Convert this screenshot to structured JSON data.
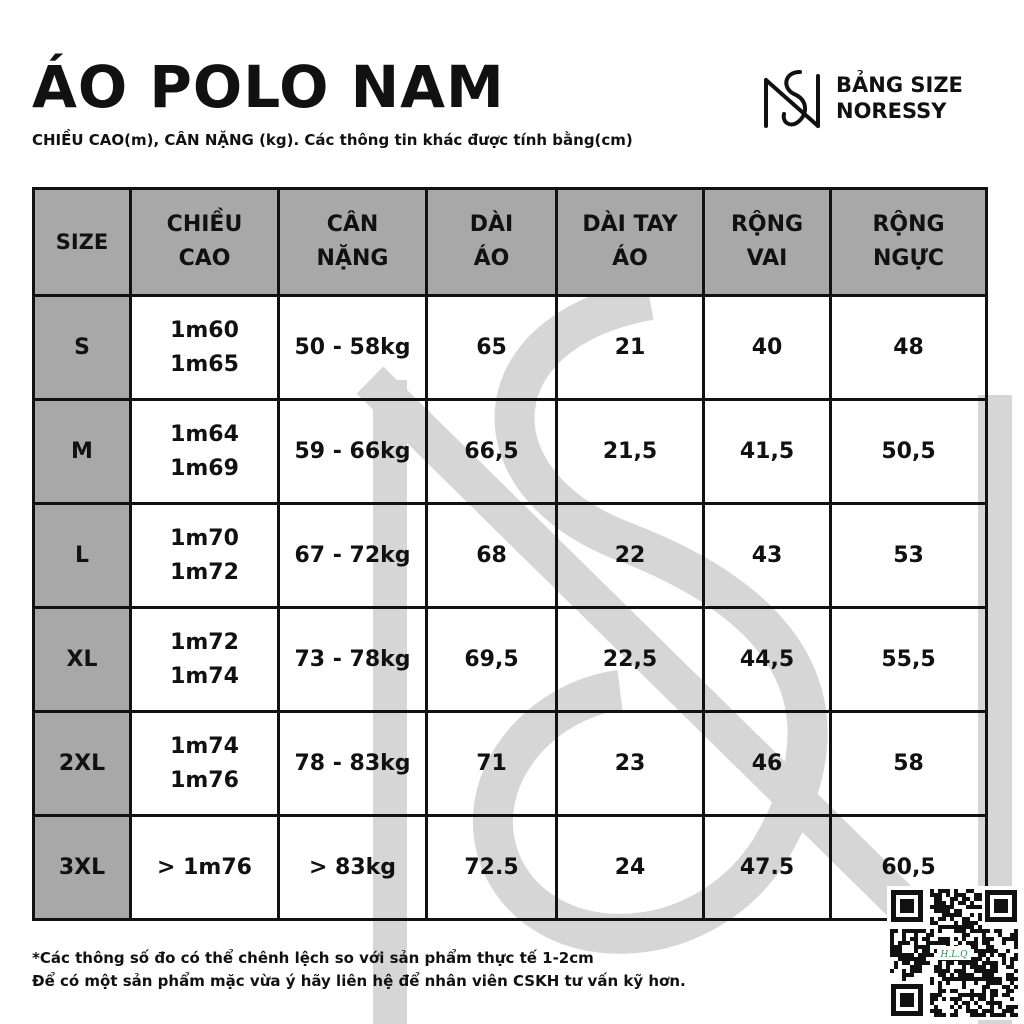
{
  "header": {
    "title": "ÁO POLO NAM",
    "subtitle": "CHIỀU CAO(m), CÂN NẶNG (kg). Các thông tin khác được tính bằng(cm)"
  },
  "brand": {
    "line1": "BẢNG SIZE",
    "line2": "NORESSY",
    "logo_icon": "ns-monogram-logo"
  },
  "table": {
    "headers": [
      [
        "SIZE"
      ],
      [
        "CHIỀU",
        "CAO"
      ],
      [
        "CÂN",
        "NẶNG"
      ],
      [
        "DÀI",
        "ÁO"
      ],
      [
        "DÀI TAY",
        "ÁO"
      ],
      [
        "RỘNG",
        "VAI"
      ],
      [
        "RỘNG",
        "NGỰC"
      ]
    ],
    "rows": [
      {
        "size": "S",
        "height": [
          "1m60",
          "1m65"
        ],
        "weight": "50 - 58kg",
        "length": "65",
        "sleeve": "21",
        "shoulder": "40",
        "chest": "48"
      },
      {
        "size": "M",
        "height": [
          "1m64",
          "1m69"
        ],
        "weight": "59 - 66kg",
        "length": "66,5",
        "sleeve": "21,5",
        "shoulder": "41,5",
        "chest": "50,5"
      },
      {
        "size": "L",
        "height": [
          "1m70",
          "1m72"
        ],
        "weight": "67 - 72kg",
        "length": "68",
        "sleeve": "22",
        "shoulder": "43",
        "chest": "53"
      },
      {
        "size": "XL",
        "height": [
          "1m72",
          "1m74"
        ],
        "weight": "73 - 78kg",
        "length": "69,5",
        "sleeve": "22,5",
        "shoulder": "44,5",
        "chest": "55,5"
      },
      {
        "size": "2XL",
        "height": [
          "1m74",
          "1m76"
        ],
        "weight": "78 - 83kg",
        "length": "71",
        "sleeve": "23",
        "shoulder": "46",
        "chest": "58"
      },
      {
        "size": "3XL",
        "height": [
          "> 1m76"
        ],
        "weight": "> 83kg",
        "length": "72.5",
        "sleeve": "24",
        "shoulder": "47.5",
        "chest": "60,5"
      }
    ]
  },
  "footer": {
    "note1": "*Các thông số đo có thể chênh lệch so với sản phẩm thực tế 1-2cm",
    "note2": "Để có một sản phẩm mặc vừa ý hãy liên hệ để nhân viên CSKH tư vấn kỹ hơn."
  },
  "qr_code": {
    "icon": "qr-code-icon",
    "label": "H.L.Q"
  },
  "colors": {
    "header_fill": "#a8a8a8",
    "text": "#111111",
    "watermark": "#d6d6d6",
    "background": "#ffffff"
  }
}
